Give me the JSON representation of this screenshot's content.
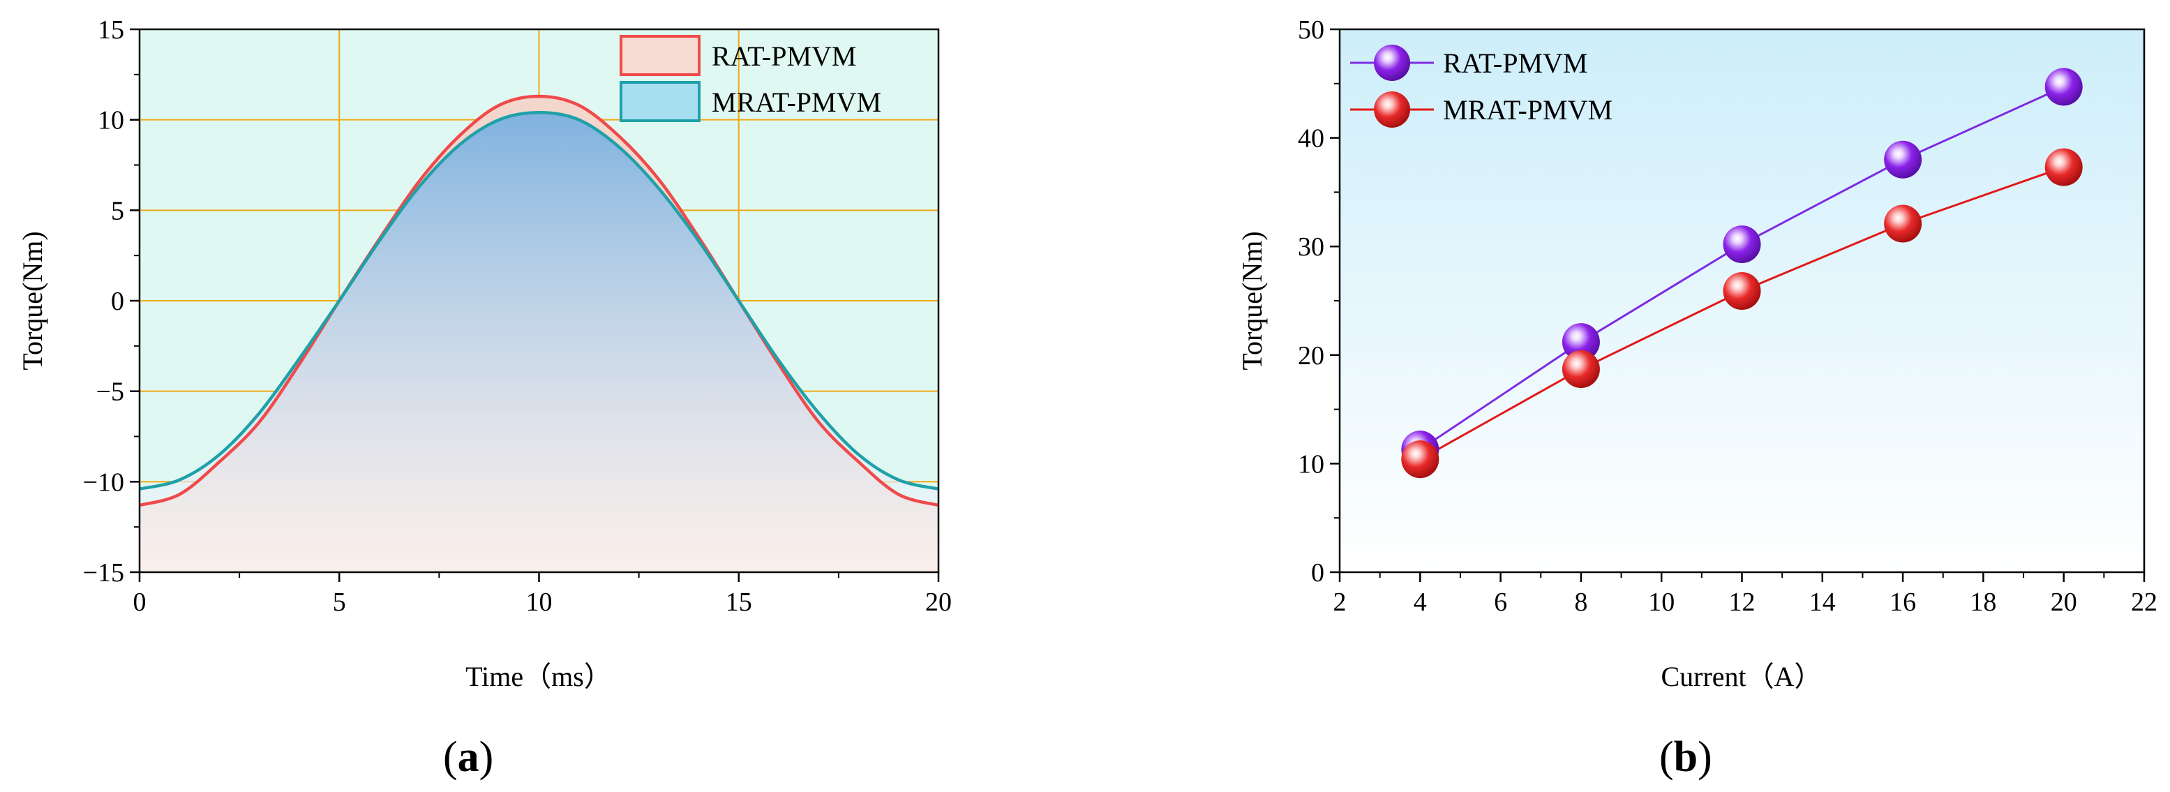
{
  "colors": {
    "rat_line": "#f04a4a",
    "mrat_line": "#20a0a8",
    "grid": "#f0a818",
    "bg_a": "#dff9f2",
    "b_bg_top": "#cdeefa",
    "b_bg_bottom": "#ffffff",
    "rat_marker": "#8a22e8",
    "rat_series_line": "#7d2be3",
    "mrat_marker": "#e82a2a",
    "mrat_series_line": "#e21818"
  },
  "panels": {
    "a": {
      "caption_paren_open": "(",
      "caption_letter": "a",
      "caption_paren_close": ")"
    },
    "b": {
      "caption_paren_open": "(",
      "caption_letter": "b",
      "caption_paren_close": ")"
    }
  },
  "chart_data": [
    {
      "id": "a",
      "type": "area",
      "title": "",
      "xlabel": "Time（ms）",
      "ylabel": "Torque(Nm)",
      "xlim": [
        0,
        20
      ],
      "ylim": [
        -15,
        15
      ],
      "xticks": [
        0,
        5,
        10,
        15,
        20
      ],
      "xtick_labels": [
        "0",
        "5",
        "10",
        "15",
        "20"
      ],
      "yticks": [
        -15,
        -10,
        -5,
        0,
        5,
        10,
        15
      ],
      "ytick_labels": [
        "−15",
        "−10",
        "−5",
        "0",
        "5",
        "10",
        "15"
      ],
      "grid": true,
      "legend_position": "top-right",
      "series": [
        {
          "name": "RAT-PMVM",
          "x": [
            0,
            1,
            2,
            3,
            4,
            5,
            6,
            7,
            8,
            9,
            10,
            11,
            12,
            13,
            14,
            15,
            16,
            17,
            18,
            19,
            20
          ],
          "values": [
            -11.3,
            -10.7,
            -8.9,
            -6.7,
            -3.5,
            0.0,
            3.4,
            6.6,
            9.1,
            10.8,
            11.3,
            10.8,
            9.1,
            6.7,
            3.5,
            0.0,
            -3.5,
            -6.7,
            -8.9,
            -10.7,
            -11.3
          ]
        },
        {
          "name": "MRAT-PMVM",
          "x": [
            0,
            1,
            2,
            3,
            4,
            5,
            6,
            7,
            8,
            9,
            10,
            11,
            12,
            13,
            14,
            15,
            16,
            17,
            18,
            19,
            20
          ],
          "values": [
            -10.4,
            -9.9,
            -8.5,
            -6.2,
            -3.2,
            0.0,
            3.3,
            6.3,
            8.6,
            10.0,
            10.4,
            10.0,
            8.5,
            6.2,
            3.3,
            0.0,
            -3.3,
            -6.2,
            -8.5,
            -9.9,
            -10.4
          ]
        }
      ]
    },
    {
      "id": "b",
      "type": "line",
      "title": "",
      "xlabel": "Current（A）",
      "ylabel": "Torque(Nm)",
      "xlim": [
        2,
        22
      ],
      "ylim": [
        0,
        50
      ],
      "xticks": [
        2,
        4,
        6,
        8,
        10,
        12,
        14,
        16,
        18,
        20,
        22
      ],
      "xtick_labels": [
        "2",
        "4",
        "6",
        "8",
        "10",
        "12",
        "14",
        "16",
        "18",
        "20",
        "22"
      ],
      "yticks": [
        0,
        10,
        20,
        30,
        40,
        50
      ],
      "ytick_labels": [
        "0",
        "10",
        "20",
        "30",
        "40",
        "50"
      ],
      "grid": false,
      "legend_position": "top-left",
      "series": [
        {
          "name": "RAT-PMVM",
          "x": [
            4,
            8,
            12,
            16,
            20
          ],
          "values": [
            11.3,
            21.2,
            30.2,
            38.0,
            44.7
          ]
        },
        {
          "name": "MRAT-PMVM",
          "x": [
            4,
            8,
            12,
            16,
            20
          ],
          "values": [
            10.4,
            18.7,
            25.9,
            32.1,
            37.3
          ]
        }
      ]
    }
  ]
}
